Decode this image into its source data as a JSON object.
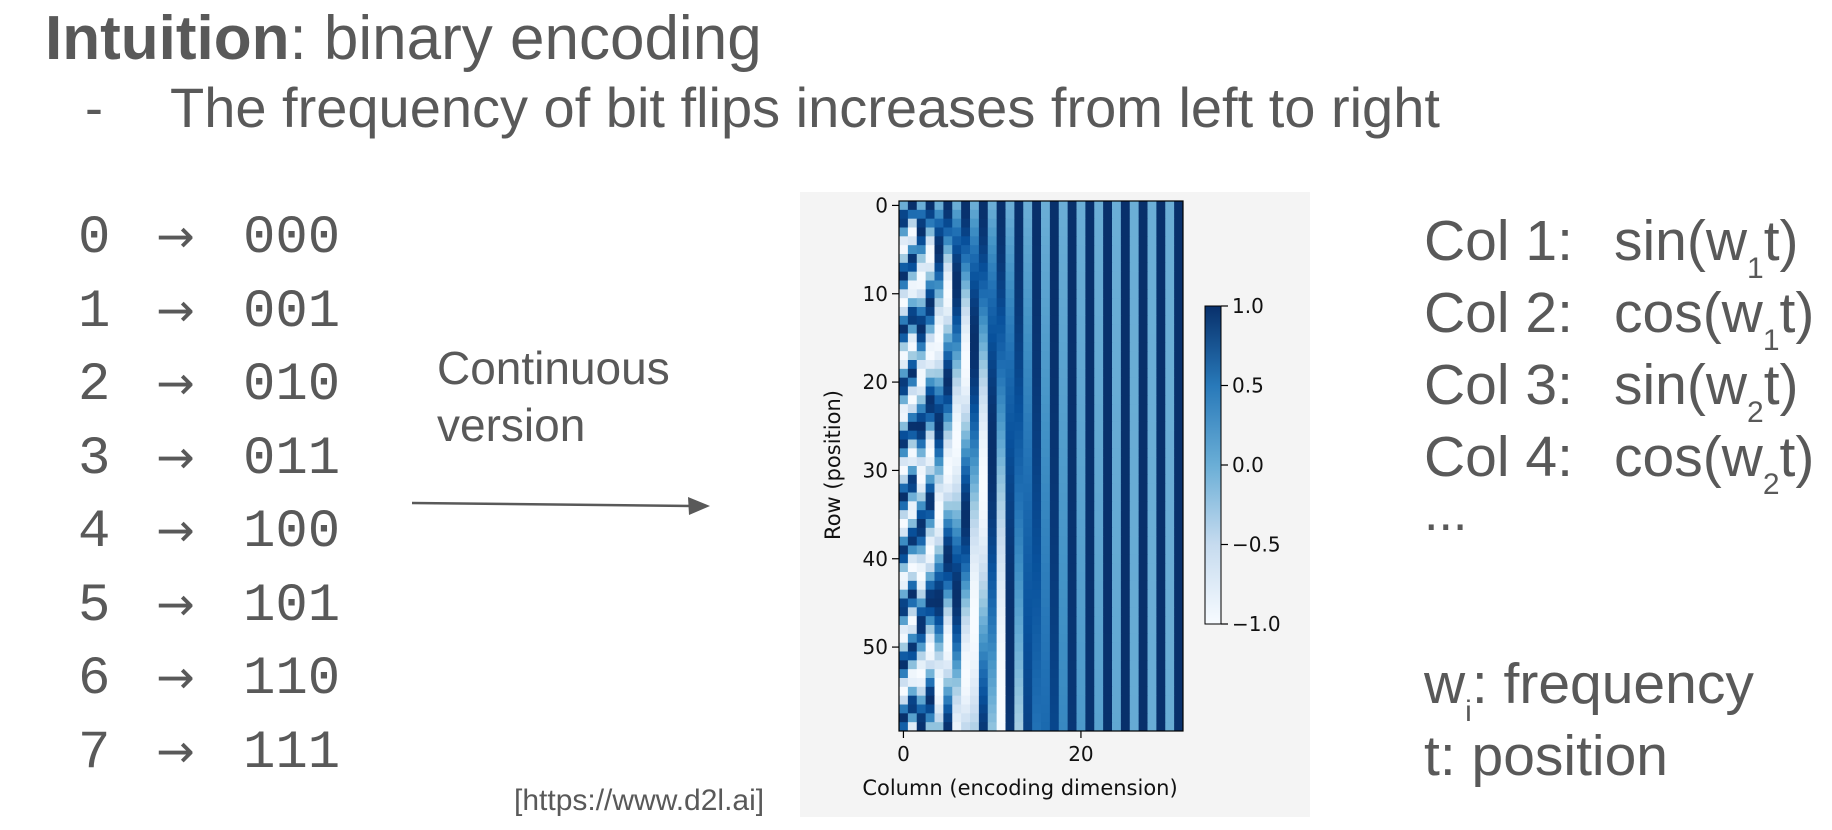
{
  "heading": {
    "bold": "Intuition",
    "rest": ": binary encoding"
  },
  "bullet": {
    "dash": "-",
    "text": "The frequency of bit flips increases from left to right"
  },
  "binary_rows": [
    {
      "num": "0",
      "arrow": "→",
      "code": "000"
    },
    {
      "num": "1",
      "arrow": "→",
      "code": "001"
    },
    {
      "num": "2",
      "arrow": "→",
      "code": "010"
    },
    {
      "num": "3",
      "arrow": "→",
      "code": "011"
    },
    {
      "num": "4",
      "arrow": "→",
      "code": "100"
    },
    {
      "num": "5",
      "arrow": "→",
      "code": "101"
    },
    {
      "num": "6",
      "arrow": "→",
      "code": "110"
    },
    {
      "num": "7",
      "arrow": "→",
      "code": "111"
    }
  ],
  "continuous_label": {
    "line1": "Continuous",
    "line2": "version"
  },
  "citation": "[https://www.d2l.ai]",
  "heatmap": {
    "xlabel": "Column (encoding dimension)",
    "ylabel": "Row (position)",
    "x_ticks": [
      "0",
      "20"
    ],
    "y_ticks": [
      "0",
      "10",
      "20",
      "30",
      "40",
      "50"
    ],
    "colorbar_ticks": [
      "1.0",
      "0.5",
      "0.0",
      "−0.5",
      "−1.0"
    ],
    "n_rows": 60,
    "n_cols": 32,
    "colormap": "Blues",
    "range": [
      -1.0,
      1.0
    ]
  },
  "formulas": [
    {
      "label": "Col 1:",
      "fn": "sin(w",
      "sub": "1",
      "end": "t)"
    },
    {
      "label": "Col 2:",
      "fn": "cos(w",
      "sub": "1",
      "end": "t)"
    },
    {
      "label": "Col 3:",
      "fn": "sin(w",
      "sub": "2",
      "end": "t)"
    },
    {
      "label": "Col 4:",
      "fn": "cos(w",
      "sub": "2",
      "end": "t)"
    }
  ],
  "ellipsis": "...",
  "definitions": {
    "w_var": "w",
    "w_sub": "i",
    "w_rest": ": frequency",
    "t_def": "t: position"
  }
}
